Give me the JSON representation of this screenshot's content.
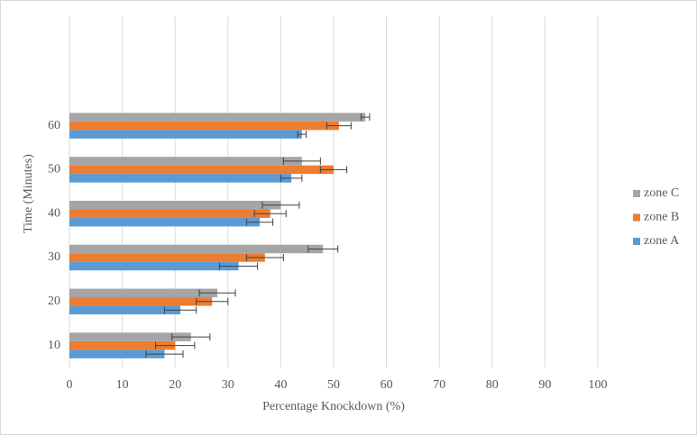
{
  "chart_data": {
    "type": "bar",
    "orientation": "horizontal",
    "x_label": "Percentage Knockdown (%)",
    "y_label": "Time (Minutes)",
    "categories": [
      10,
      20,
      30,
      40,
      50,
      60
    ],
    "series": [
      {
        "name": "zone A",
        "color": "#5b9bd5",
        "values": [
          18,
          21,
          32,
          36,
          42,
          44
        ],
        "errors": [
          3.5,
          3,
          3.6,
          2.5,
          2,
          0.8
        ]
      },
      {
        "name": "zone B",
        "color": "#ed7d31",
        "values": [
          20,
          27,
          37,
          38,
          50,
          51
        ],
        "errors": [
          3.7,
          3,
          3.5,
          3,
          2.5,
          2.3
        ]
      },
      {
        "name": "zone C",
        "color": "#a5a5a5",
        "values": [
          23,
          28,
          48,
          40,
          44,
          56
        ],
        "errors": [
          3.6,
          3.4,
          2.8,
          3.5,
          3.5,
          0.8
        ]
      }
    ],
    "xlim": [
      0,
      100
    ],
    "xticks": [
      0,
      10,
      20,
      30,
      40,
      50,
      60,
      70,
      80,
      90,
      100
    ],
    "grid": true,
    "legend": "right"
  }
}
